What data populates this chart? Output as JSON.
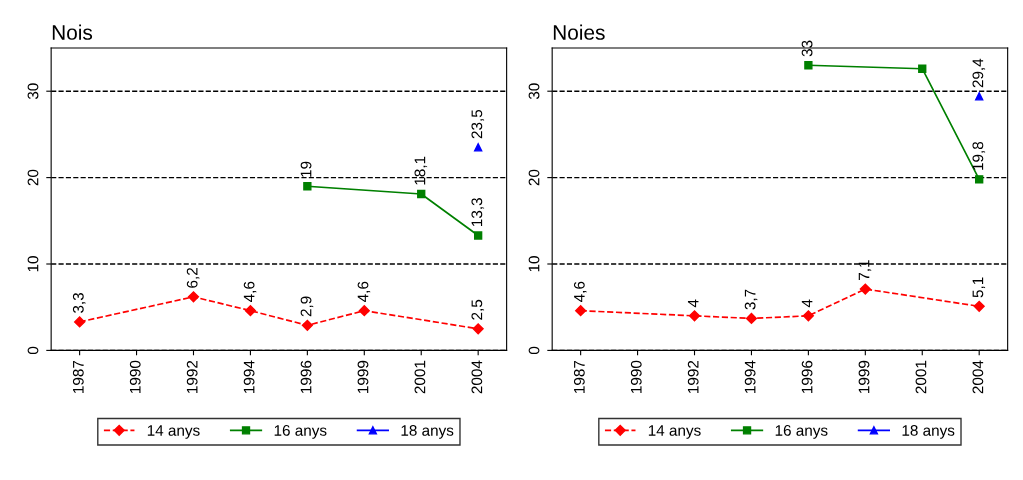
{
  "chart_data": [
    {
      "type": "line",
      "title": "Nois",
      "categories": [
        "1987",
        "1990",
        "1992",
        "1994",
        "1996",
        "1999",
        "2001",
        "2004"
      ],
      "ylim": [
        0,
        35
      ],
      "yticks": [
        0,
        10,
        20,
        30
      ],
      "grid": "y",
      "legend": "bottom",
      "series": [
        {
          "name": "14 anys",
          "color": "#ff0000",
          "marker": "diamond",
          "line_style": "dashed",
          "values": [
            3.3,
            null,
            6.2,
            4.6,
            2.9,
            4.6,
            null,
            2.5
          ],
          "value_labels": [
            "3,3",
            null,
            "6,2",
            "4,6",
            "2,9",
            "4,6",
            null,
            "2,5"
          ]
        },
        {
          "name": "16 anys",
          "color": "#008000",
          "marker": "square",
          "line_style": "solid",
          "values": [
            null,
            null,
            null,
            null,
            19,
            null,
            18.1,
            13.3
          ],
          "value_labels": [
            null,
            null,
            null,
            null,
            "19",
            null,
            "18,1",
            "13,3"
          ]
        },
        {
          "name": "18 anys",
          "color": "#0000ff",
          "marker": "triangle",
          "line_style": "solid",
          "values": [
            null,
            null,
            null,
            null,
            null,
            null,
            null,
            23.5
          ],
          "value_labels": [
            null,
            null,
            null,
            null,
            null,
            null,
            null,
            "23,5"
          ]
        }
      ]
    },
    {
      "type": "line",
      "title": "Noies",
      "categories": [
        "1987",
        "1990",
        "1992",
        "1994",
        "1996",
        "1999",
        "2001",
        "2004"
      ],
      "ylim": [
        0,
        35
      ],
      "yticks": [
        0,
        10,
        20,
        30
      ],
      "grid": "y",
      "legend": "bottom",
      "series": [
        {
          "name": "14 anys",
          "color": "#ff0000",
          "marker": "diamond",
          "line_style": "dashed",
          "values": [
            4.6,
            null,
            4,
            3.7,
            4,
            7.1,
            null,
            5.1
          ],
          "value_labels": [
            "4,6",
            null,
            "4",
            "3,7",
            "4",
            "7,1",
            null,
            "5,1"
          ]
        },
        {
          "name": "16 anys",
          "color": "#008000",
          "marker": "square",
          "line_style": "solid",
          "values": [
            null,
            null,
            null,
            null,
            33,
            null,
            32.6,
            19.8
          ],
          "value_labels": [
            null,
            null,
            null,
            null,
            "33",
            null,
            null,
            "19,8"
          ]
        },
        {
          "name": "18 anys",
          "color": "#0000ff",
          "marker": "triangle",
          "line_style": "solid",
          "values": [
            null,
            null,
            null,
            null,
            null,
            null,
            null,
            29.4
          ],
          "value_labels": [
            null,
            null,
            null,
            null,
            null,
            null,
            null,
            "29,4"
          ]
        }
      ]
    }
  ]
}
